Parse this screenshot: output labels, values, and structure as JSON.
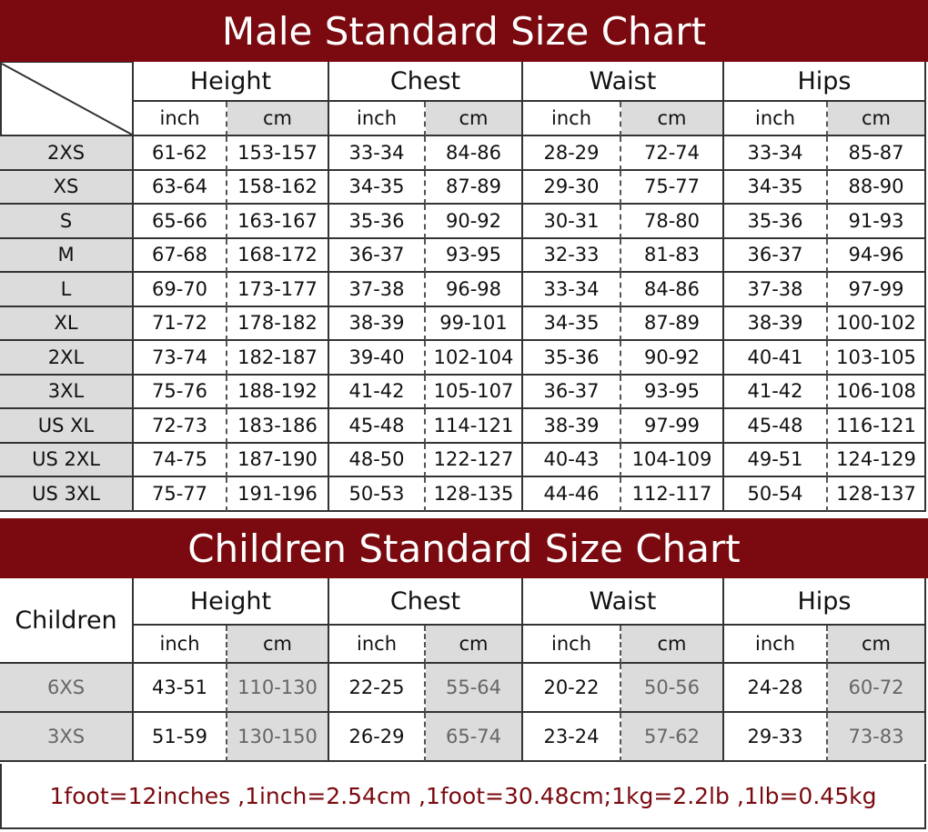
{
  "male": {
    "title": "Male Standard Size Chart",
    "groups": [
      "Height",
      "Chest",
      "Waist",
      "Hips"
    ],
    "units": [
      "inch",
      "cm",
      "inch",
      "cm",
      "inch",
      "cm",
      "inch",
      "cm"
    ],
    "rows": [
      [
        "2XS",
        "61-62",
        "153-157",
        "33-34",
        "84-86",
        "28-29",
        "72-74",
        "33-34",
        "85-87"
      ],
      [
        "XS",
        "63-64",
        "158-162",
        "34-35",
        "87-89",
        "29-30",
        "75-77",
        "34-35",
        "88-90"
      ],
      [
        "S",
        "65-66",
        "163-167",
        "35-36",
        "90-92",
        "30-31",
        "78-80",
        "35-36",
        "91-93"
      ],
      [
        "M",
        "67-68",
        "168-172",
        "36-37",
        "93-95",
        "32-33",
        "81-83",
        "36-37",
        "94-96"
      ],
      [
        "L",
        "69-70",
        "173-177",
        "37-38",
        "96-98",
        "33-34",
        "84-86",
        "37-38",
        "97-99"
      ],
      [
        "XL",
        "71-72",
        "178-182",
        "38-39",
        "99-101",
        "34-35",
        "87-89",
        "38-39",
        "100-102"
      ],
      [
        "2XL",
        "73-74",
        "182-187",
        "39-40",
        "102-104",
        "35-36",
        "90-92",
        "40-41",
        "103-105"
      ],
      [
        "3XL",
        "75-76",
        "188-192",
        "41-42",
        "105-107",
        "36-37",
        "93-95",
        "41-42",
        "106-108"
      ],
      [
        "US XL",
        "72-73",
        "183-186",
        "45-48",
        "114-121",
        "38-39",
        "97-99",
        "45-48",
        "116-121"
      ],
      [
        "US 2XL",
        "74-75",
        "187-190",
        "48-50",
        "122-127",
        "40-43",
        "104-109",
        "49-51",
        "124-129"
      ],
      [
        "US 3XL",
        "75-77",
        "191-196",
        "50-53",
        "128-135",
        "44-46",
        "112-117",
        "50-54",
        "128-137"
      ]
    ]
  },
  "children": {
    "title": "Children Standard Size Chart",
    "corner": "Children",
    "groups": [
      "Height",
      "Chest",
      "Waist",
      "Hips"
    ],
    "units": [
      "inch",
      "cm",
      "inch",
      "cm",
      "inch",
      "cm",
      "inch",
      "cm"
    ],
    "rows": [
      [
        "6XS",
        "43-51",
        "110-130",
        "22-25",
        "55-64",
        "20-22",
        "50-56",
        "24-28",
        "60-72"
      ],
      [
        "3XS",
        "51-59",
        "130-150",
        "26-29",
        "65-74",
        "23-24",
        "57-62",
        "29-33",
        "73-83"
      ]
    ]
  },
  "footer": {
    "note": "1foot=12inches ,1inch=2.54cm ,1foot=30.48cm;1kg=2.2lb ,1lb=0.45kg"
  }
}
